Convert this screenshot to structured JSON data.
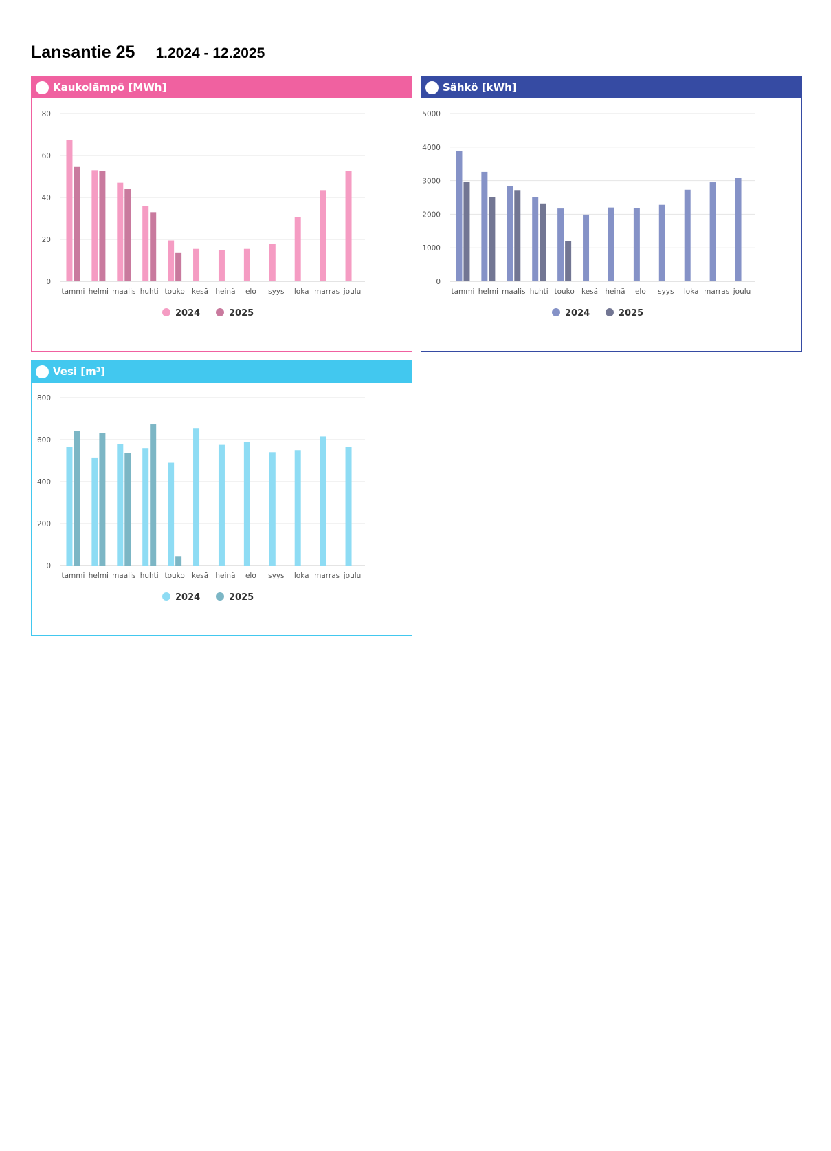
{
  "header": {
    "title": "Lansantie 25",
    "period": "1.2024 - 12.2025"
  },
  "panels": [
    {
      "id": "heat",
      "title": "Kaukolämpö [MWh]",
      "accent": "#f061a0",
      "colors": [
        "#f59cc3",
        "#c97a9e"
      ],
      "chart_data": {
        "type": "bar",
        "categories": [
          "tammi",
          "helmi",
          "maalis",
          "huhti",
          "touko",
          "kesä",
          "heinä",
          "elo",
          "syys",
          "loka",
          "marras",
          "joulu"
        ],
        "ylim": [
          0,
          80
        ],
        "yticks": [
          0,
          20,
          40,
          60,
          80
        ],
        "series": [
          {
            "name": "2024",
            "values": [
              67.5,
              53,
              47,
              36,
              19.5,
              15.5,
              15,
              15.5,
              18,
              30.5,
              43.5,
              52.5
            ]
          },
          {
            "name": "2025",
            "values": [
              54.5,
              52.5,
              44,
              33,
              13.5,
              null,
              null,
              null,
              null,
              null,
              null,
              null
            ]
          }
        ]
      }
    },
    {
      "id": "electricity",
      "title": "Sähkö [kWh]",
      "accent": "#364ba3",
      "colors": [
        "#8592c7",
        "#727693"
      ],
      "chart_data": {
        "type": "bar",
        "categories": [
          "tammi",
          "helmi",
          "maalis",
          "huhti",
          "touko",
          "kesä",
          "heinä",
          "elo",
          "syys",
          "loka",
          "marras",
          "joulu"
        ],
        "ylim": [
          0,
          5000
        ],
        "yticks": [
          0,
          1000,
          2000,
          3000,
          4000,
          5000
        ],
        "series": [
          {
            "name": "2024",
            "values": [
              3880,
              3260,
              2830,
              2510,
              2170,
              1990,
              2200,
              2190,
              2280,
              2730,
              2950,
              3080
            ]
          },
          {
            "name": "2025",
            "values": [
              2970,
              2510,
              2720,
              2320,
              1200,
              null,
              null,
              null,
              null,
              null,
              null,
              null
            ]
          }
        ]
      }
    },
    {
      "id": "water",
      "title": "Vesi [m³]",
      "accent": "#42c8ef",
      "colors": [
        "#8edcf4",
        "#7cb6c5"
      ],
      "chart_data": {
        "type": "bar",
        "categories": [
          "tammi",
          "helmi",
          "maalis",
          "huhti",
          "touko",
          "kesä",
          "heinä",
          "elo",
          "syys",
          "loka",
          "marras",
          "joulu"
        ],
        "ylim": [
          0,
          800
        ],
        "yticks": [
          0,
          200,
          400,
          600,
          800
        ],
        "series": [
          {
            "name": "2024",
            "values": [
              565,
              515,
              580,
              560,
              490,
              655,
              575,
              590,
              540,
              550,
              615,
              565
            ]
          },
          {
            "name": "2025",
            "values": [
              640,
              632,
              535,
              672,
              45,
              null,
              null,
              null,
              null,
              null,
              null,
              null
            ]
          }
        ]
      }
    }
  ]
}
